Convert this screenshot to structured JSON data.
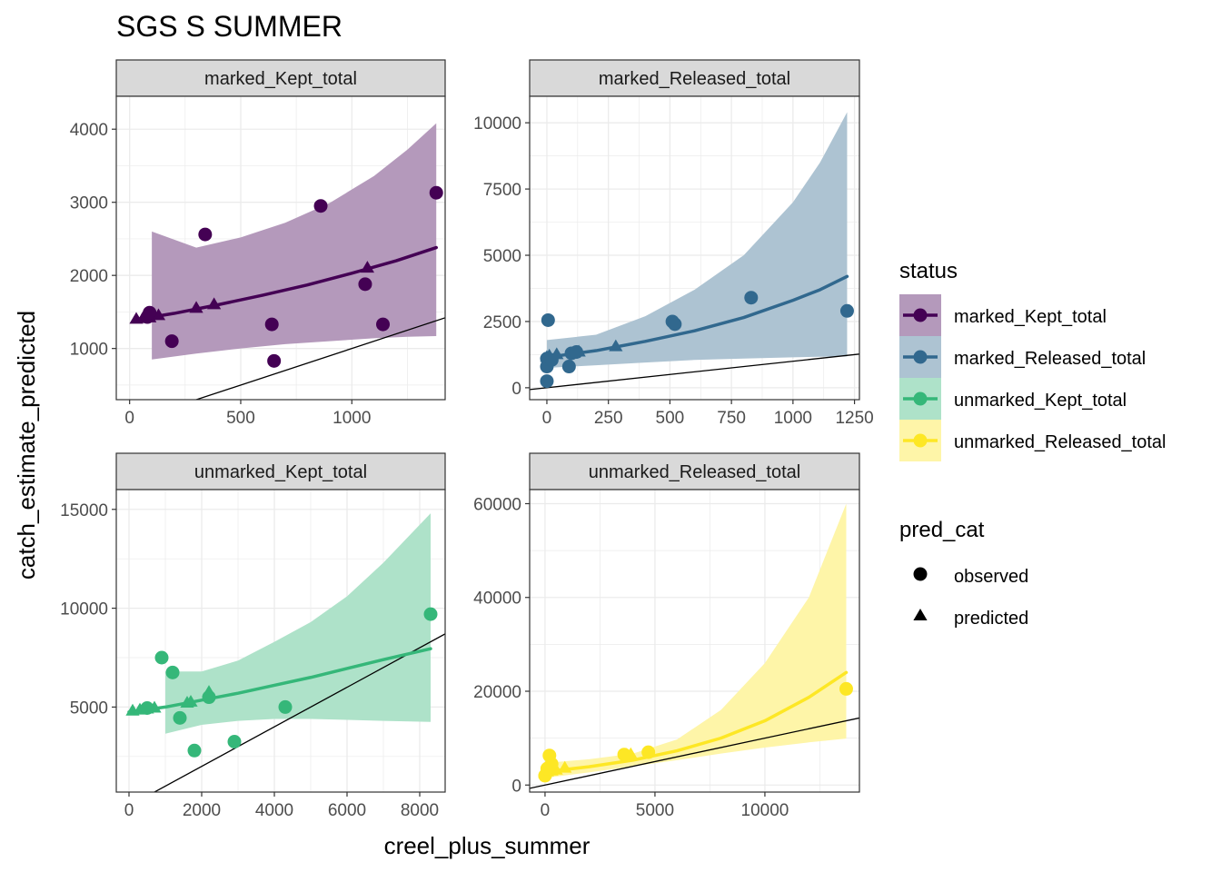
{
  "chart_data": {
    "type": "scatter",
    "title": "SGS S SUMMER",
    "xlabel": "creel_plus_summer",
    "ylabel": "catch_estimate_predicted",
    "grid": true,
    "legend_placement": "right",
    "legend": {
      "status_title": "status",
      "status_items": [
        {
          "label": "marked_Kept_total",
          "color": "#440154"
        },
        {
          "label": "marked_Released_total",
          "color": "#31688E"
        },
        {
          "label": "unmarked_Kept_total",
          "color": "#35B779"
        },
        {
          "label": "unmarked_Released_total",
          "color": "#FDE725"
        }
      ],
      "shape_title": "pred_cat",
      "shape_items": [
        {
          "label": "observed",
          "shape": "circle"
        },
        {
          "label": "predicted",
          "shape": "triangle"
        }
      ]
    },
    "panels": [
      {
        "strip": "marked_Kept_total",
        "color": "#440154",
        "xlim": [
          -60,
          1420
        ],
        "ylim": [
          300,
          4450
        ],
        "xticks": [
          0,
          500,
          1000
        ],
        "yticks": [
          1000,
          2000,
          3000,
          4000
        ],
        "xtick_labels": [
          "0",
          "500",
          "1000"
        ],
        "ytick_labels": [
          "1000",
          "2000",
          "3000",
          "4000"
        ],
        "observed": [
          [
            80,
            1430
          ],
          [
            90,
            1490
          ],
          [
            190,
            1100
          ],
          [
            340,
            2560
          ],
          [
            640,
            1330
          ],
          [
            650,
            830
          ],
          [
            860,
            2950
          ],
          [
            1060,
            1880
          ],
          [
            1140,
            1330
          ],
          [
            1380,
            3130
          ]
        ],
        "predicted": [
          [
            30,
            1400
          ],
          [
            60,
            1410
          ],
          [
            90,
            1420
          ],
          [
            130,
            1450
          ],
          [
            300,
            1550
          ],
          [
            380,
            1600
          ],
          [
            1070,
            2100
          ]
        ],
        "fit": [
          [
            20,
            1390
          ],
          [
            200,
            1480
          ],
          [
            400,
            1600
          ],
          [
            600,
            1730
          ],
          [
            800,
            1870
          ],
          [
            1000,
            2030
          ],
          [
            1200,
            2200
          ],
          [
            1380,
            2380
          ]
        ],
        "band": {
          "x": [
            100,
            300,
            500,
            700,
            900,
            1100,
            1250,
            1380
          ],
          "lower": [
            850,
            930,
            1000,
            1060,
            1100,
            1140,
            1160,
            1170
          ],
          "upper": [
            2600,
            2380,
            2520,
            2720,
            2990,
            3360,
            3720,
            4080
          ]
        },
        "ref_line": [
          [
            -60,
            -60
          ],
          [
            1420,
            1420
          ]
        ]
      },
      {
        "strip": "marked_Released_total",
        "color": "#31688E",
        "xlim": [
          -70,
          1270
        ],
        "ylim": [
          -450,
          11000
        ],
        "xticks": [
          0,
          250,
          500,
          750,
          1000,
          1250
        ],
        "yticks": [
          0,
          2500,
          5000,
          7500,
          10000
        ],
        "xtick_labels": [
          "0",
          "250",
          "500",
          "750",
          "1000",
          "1250"
        ],
        "ytick_labels": [
          "0",
          "2500",
          "5000",
          "7500",
          "10000"
        ],
        "observed": [
          [
            0,
            250
          ],
          [
            0,
            800
          ],
          [
            0,
            1100
          ],
          [
            5,
            2550
          ],
          [
            20,
            1050
          ],
          [
            90,
            800
          ],
          [
            100,
            1300
          ],
          [
            120,
            1350
          ],
          [
            510,
            2500
          ],
          [
            520,
            2400
          ],
          [
            830,
            3400
          ],
          [
            1220,
            2900
          ]
        ],
        "predicted": [
          [
            0,
            1150
          ],
          [
            10,
            1200
          ],
          [
            40,
            1250
          ],
          [
            110,
            1300
          ],
          [
            130,
            1350
          ],
          [
            280,
            1550
          ]
        ],
        "fit": [
          [
            0,
            1150
          ],
          [
            200,
            1400
          ],
          [
            400,
            1750
          ],
          [
            600,
            2150
          ],
          [
            800,
            2650
          ],
          [
            1000,
            3300
          ],
          [
            1110,
            3700
          ],
          [
            1220,
            4200
          ]
        ],
        "band": {
          "x": [
            0,
            200,
            400,
            600,
            800,
            1000,
            1110,
            1220
          ],
          "lower": [
            750,
            850,
            950,
            1050,
            1100,
            1150,
            1170,
            1180
          ],
          "upper": [
            1800,
            2000,
            2700,
            3700,
            5000,
            7000,
            8500,
            10400
          ]
        },
        "ref_line": [
          [
            -70,
            -70
          ],
          [
            1270,
            1270
          ]
        ]
      },
      {
        "strip": "unmarked_Kept_total",
        "color": "#35B779",
        "xlim": [
          -350,
          8700
        ],
        "ylim": [
          700,
          16000
        ],
        "xticks": [
          0,
          2000,
          4000,
          6000,
          8000
        ],
        "yticks": [
          5000,
          10000,
          15000
        ],
        "xtick_labels": [
          "0",
          "2000",
          "4000",
          "6000",
          "8000"
        ],
        "ytick_labels": [
          "5000",
          "10000",
          "15000"
        ],
        "observed": [
          [
            500,
            4950
          ],
          [
            900,
            7500
          ],
          [
            1200,
            6750
          ],
          [
            1400,
            4450
          ],
          [
            1800,
            2800
          ],
          [
            2200,
            5500
          ],
          [
            2900,
            3250
          ],
          [
            4300,
            5000
          ],
          [
            8300,
            9700
          ]
        ],
        "predicted": [
          [
            100,
            4800
          ],
          [
            300,
            4850
          ],
          [
            500,
            4900
          ],
          [
            700,
            4950
          ],
          [
            1600,
            5200
          ],
          [
            1700,
            5250
          ],
          [
            2200,
            5750
          ]
        ],
        "fit": [
          [
            0,
            4750
          ],
          [
            1000,
            5000
          ],
          [
            2000,
            5350
          ],
          [
            3000,
            5700
          ],
          [
            4000,
            6100
          ],
          [
            5000,
            6500
          ],
          [
            6000,
            6950
          ],
          [
            7000,
            7400
          ],
          [
            8300,
            7950
          ]
        ],
        "band": {
          "x": [
            1000,
            2000,
            3000,
            4000,
            5000,
            6000,
            7000,
            8300
          ],
          "lower": [
            3650,
            4100,
            4300,
            4400,
            4400,
            4350,
            4300,
            4250
          ],
          "upper": [
            6800,
            6800,
            7350,
            8300,
            9300,
            10600,
            12300,
            14800
          ]
        },
        "ref_line": [
          [
            -350,
            -350
          ],
          [
            8700,
            8700
          ]
        ]
      },
      {
        "strip": "unmarked_Released_total",
        "color": "#FDE725",
        "xlim": [
          -700,
          14300
        ],
        "ylim": [
          -1500,
          63000
        ],
        "xticks": [
          0,
          5000,
          10000
        ],
        "yticks": [
          0,
          20000,
          40000,
          60000
        ],
        "xtick_labels": [
          "0",
          "5000",
          "10000"
        ],
        "ytick_labels": [
          "0",
          "20000",
          "40000",
          "60000"
        ],
        "observed": [
          [
            0,
            2000
          ],
          [
            100,
            3500
          ],
          [
            200,
            6300
          ],
          [
            300,
            4500
          ],
          [
            3600,
            6500
          ],
          [
            4700,
            7000
          ],
          [
            13700,
            20500
          ]
        ],
        "predicted": [
          [
            0,
            2500
          ],
          [
            100,
            2800
          ],
          [
            300,
            3000
          ],
          [
            500,
            3200
          ],
          [
            900,
            3600
          ],
          [
            3700,
            6400
          ],
          [
            3900,
            6500
          ]
        ],
        "fit": [
          [
            0,
            2800
          ],
          [
            2000,
            3900
          ],
          [
            4000,
            5300
          ],
          [
            6000,
            7300
          ],
          [
            8000,
            10000
          ],
          [
            10000,
            13700
          ],
          [
            12000,
            18700
          ],
          [
            13700,
            24000
          ]
        ],
        "band": {
          "x": [
            0,
            2000,
            4000,
            6000,
            8000,
            10000,
            12000,
            13700
          ],
          "lower": [
            1500,
            2700,
            4000,
            5300,
            6700,
            8000,
            9100,
            9900
          ],
          "upper": [
            4700,
            5500,
            6700,
            9700,
            16000,
            26000,
            40000,
            60000
          ]
        },
        "ref_line": [
          [
            -700,
            -700
          ],
          [
            14300,
            14300
          ]
        ]
      }
    ]
  }
}
